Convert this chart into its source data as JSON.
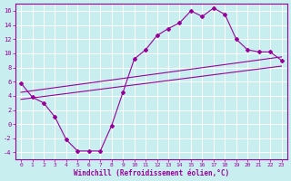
{
  "xlabel": "Windchill (Refroidissement éolien,°C)",
  "background_color": "#c8eef0",
  "grid_color": "#aadddd",
  "line_color": "#990099",
  "xlim": [
    -0.5,
    23.5
  ],
  "ylim": [
    -5,
    17
  ],
  "yticks": [
    -4,
    -2,
    0,
    2,
    4,
    6,
    8,
    10,
    12,
    14,
    16
  ],
  "xticks": [
    0,
    1,
    2,
    3,
    4,
    5,
    6,
    7,
    8,
    9,
    10,
    11,
    12,
    13,
    14,
    15,
    16,
    17,
    18,
    19,
    20,
    21,
    22,
    23
  ],
  "curve1_x": [
    0,
    1,
    2,
    3,
    4,
    5,
    6,
    7,
    8,
    9,
    10,
    11,
    12,
    13,
    14,
    15,
    16,
    17,
    18,
    19,
    20,
    21,
    22,
    23
  ],
  "curve1_y": [
    5.8,
    3.8,
    3.0,
    1.0,
    -2.2,
    -3.8,
    -3.8,
    -3.8,
    -0.2,
    4.5,
    9.2,
    10.5,
    12.5,
    13.5,
    14.3,
    16.0,
    15.2,
    16.4,
    15.5,
    12.0,
    10.5,
    10.2,
    10.2,
    9.0
  ],
  "curve2_x": [
    0,
    23
  ],
  "curve2_y": [
    4.5,
    9.5
  ],
  "curve3_x": [
    0,
    23
  ],
  "curve3_y": [
    3.5,
    8.2
  ]
}
